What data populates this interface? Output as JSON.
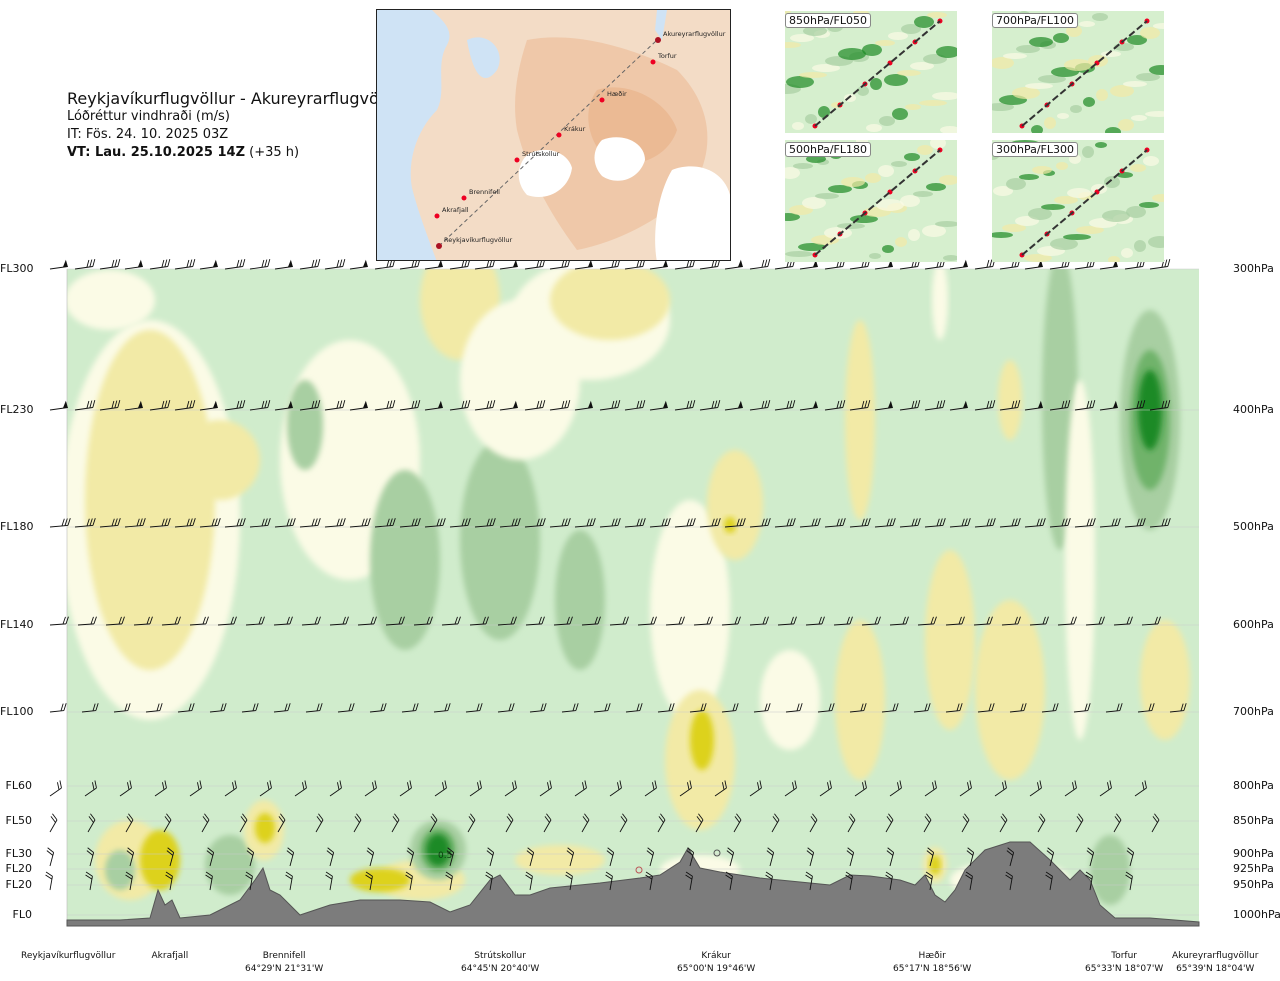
{
  "header": {
    "route": "Reykjavíkurflugvöllur - Akureyrarflugvöllur",
    "parameter": "Lóðréttur vindhraði (m/s)",
    "issue_time": "IT: Fös. 24. 10. 2025 03Z",
    "valid_label": "VT: Lau. 25.10.2025 14Z",
    "valid_offset": "(+35 h)"
  },
  "map": {
    "waypoints": [
      "Akureyrarflugvöllur",
      "Torfur",
      "Hæðir",
      "Krákur",
      "Strútskollur",
      "Brennifell",
      "Akrafjall",
      "Reykjavíkurflugvöllur"
    ]
  },
  "insets": [
    {
      "label": "850hPa/FL050"
    },
    {
      "label": "700hPa/FL100"
    },
    {
      "label": "500hPa/FL180"
    },
    {
      "label": "300hPa/FL300"
    }
  ],
  "levels": [
    {
      "fl": "FL300",
      "hpa": "300hPa"
    },
    {
      "fl": "FL230",
      "hpa": "400hPa"
    },
    {
      "fl": "FL180",
      "hpa": "500hPa"
    },
    {
      "fl": "FL140",
      "hpa": "600hPa"
    },
    {
      "fl": "FL100",
      "hpa": "700hPa"
    },
    {
      "fl": "FL60",
      "hpa": "800hPa"
    },
    {
      "fl": "FL50",
      "hpa": "850hPa"
    },
    {
      "fl": "FL30",
      "hpa": "900hPa"
    },
    {
      "fl": "FL20",
      "hpa": "925hPa"
    },
    {
      "fl": "FL20",
      "hpa": "950hPa"
    },
    {
      "fl": "FL0",
      "hpa": "1000hPa"
    }
  ],
  "stations": [
    {
      "name": "Reykjavíkurflugvöllur",
      "coord": ""
    },
    {
      "name": "Akrafjall",
      "coord": ""
    },
    {
      "name": "Brennifell",
      "coord": "64°29'N 21°31'W"
    },
    {
      "name": "Strútskollur",
      "coord": "64°45'N 20°40'W"
    },
    {
      "name": "Krákur",
      "coord": "65°00'N 19°46'W"
    },
    {
      "name": "Hæðir",
      "coord": "65°17'N 18°56'W"
    },
    {
      "name": "Torfur",
      "coord": "65°33'N 18°07'W"
    },
    {
      "name": "Akureyrarflugvöllur",
      "coord": "65°39'N 18°04'W"
    }
  ],
  "chart_data": {
    "type": "heatmap",
    "title": "Reykjavíkurflugvöllur - Akureyrarflugvöllur",
    "value_label": "Lóðréttur vindhraði (m/s)",
    "annotations": [
      "0.5"
    ],
    "colors": {
      "strong_down": "#ddd21a",
      "down": "#f2eaa6",
      "weak_down": "#fbfbe6",
      "weak_up": "#d0eccc",
      "up": "#a8cfa2",
      "moderate_up": "#6fb36a",
      "strong_up": "#1e8a25",
      "terrain": "#7c7c7c"
    },
    "levels_hpa": [
      300,
      400,
      500,
      600,
      700,
      800,
      850,
      900,
      925,
      950,
      1000
    ],
    "grid": true
  }
}
